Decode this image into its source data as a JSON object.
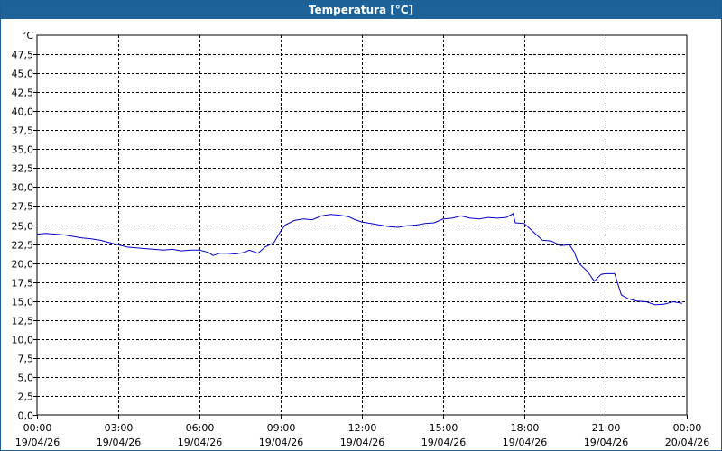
{
  "window": {
    "title": "Temperatura [°C]"
  },
  "chart_data": {
    "type": "line",
    "title": "Temperatura [°C]",
    "ylabel": "°C",
    "ylim": [
      0,
      50
    ],
    "xlim": [
      0,
      24
    ],
    "grid": true,
    "y_ticks": [
      "0,0",
      "2,5",
      "5,0",
      "7,5",
      "10,0",
      "12,5",
      "15,0",
      "17,5",
      "20,0",
      "22,5",
      "25,0",
      "27,5",
      "30,0",
      "32,5",
      "35,0",
      "37,5",
      "40,0",
      "42,5",
      "45,0",
      "47,5"
    ],
    "x_ticks": [
      {
        "time": "00:00",
        "date": "19/04/26"
      },
      {
        "time": "03:00",
        "date": "19/04/26"
      },
      {
        "time": "06:00",
        "date": "19/04/26"
      },
      {
        "time": "09:00",
        "date": "19/04/26"
      },
      {
        "time": "12:00",
        "date": "19/04/26"
      },
      {
        "time": "15:00",
        "date": "19/04/26"
      },
      {
        "time": "18:00",
        "date": "19/04/26"
      },
      {
        "time": "21:00",
        "date": "19/04/26"
      },
      {
        "time": "00:00",
        "date": "20/04/26"
      }
    ],
    "series": [
      {
        "color": "#0000c8",
        "points": [
          [
            "19/04/26 00:00",
            23.8
          ],
          [
            "19/04/26 00:20",
            23.9
          ],
          [
            "19/04/26 00:40",
            23.8
          ],
          [
            "19/04/26 01:00",
            23.7
          ],
          [
            "19/04/26 01:20",
            23.5
          ],
          [
            "19/04/26 01:40",
            23.3
          ],
          [
            "19/04/26 02:00",
            23.2
          ],
          [
            "19/04/26 02:20",
            23.0
          ],
          [
            "19/04/26 02:40",
            22.7
          ],
          [
            "19/04/26 03:00",
            22.4
          ],
          [
            "19/04/26 03:20",
            22.1
          ],
          [
            "19/04/26 03:40",
            22.0
          ],
          [
            "19/04/26 04:00",
            21.9
          ],
          [
            "19/04/26 04:20",
            21.8
          ],
          [
            "19/04/26 04:40",
            21.7
          ],
          [
            "19/04/26 05:00",
            21.8
          ],
          [
            "19/04/26 05:20",
            21.6
          ],
          [
            "19/04/26 05:40",
            21.7
          ],
          [
            "19/04/26 06:00",
            21.7
          ],
          [
            "19/04/26 06:20",
            21.4
          ],
          [
            "19/04/26 06:30",
            21.0
          ],
          [
            "19/04/26 06:45",
            21.3
          ],
          [
            "19/04/26 07:00",
            21.3
          ],
          [
            "19/04/26 07:20",
            21.2
          ],
          [
            "19/04/26 07:40",
            21.4
          ],
          [
            "19/04/26 07:50",
            21.7
          ],
          [
            "19/04/26 08:10",
            21.3
          ],
          [
            "19/04/26 08:25",
            22.1
          ],
          [
            "19/04/26 08:45",
            22.7
          ],
          [
            "19/04/26 09:00",
            24.2
          ],
          [
            "19/04/26 09:10",
            25.0
          ],
          [
            "19/04/26 09:30",
            25.6
          ],
          [
            "19/04/26 09:50",
            25.8
          ],
          [
            "19/04/26 10:10",
            25.7
          ],
          [
            "19/04/26 10:30",
            26.2
          ],
          [
            "19/04/26 10:50",
            26.4
          ],
          [
            "19/04/26 11:10",
            26.3
          ],
          [
            "19/04/26 11:30",
            26.1
          ],
          [
            "19/04/26 11:45",
            25.7
          ],
          [
            "19/04/26 12:00",
            25.4
          ],
          [
            "19/04/26 12:20",
            25.2
          ],
          [
            "19/04/26 12:40",
            25.0
          ],
          [
            "19/04/26 13:00",
            24.8
          ],
          [
            "19/04/26 13:20",
            24.7
          ],
          [
            "19/04/26 13:40",
            24.9
          ],
          [
            "19/04/26 14:00",
            25.0
          ],
          [
            "19/04/26 14:20",
            25.2
          ],
          [
            "19/04/26 14:40",
            25.3
          ],
          [
            "19/04/26 15:00",
            25.8
          ],
          [
            "19/04/26 15:20",
            25.9
          ],
          [
            "19/04/26 15:40",
            26.2
          ],
          [
            "19/04/26 16:00",
            25.9
          ],
          [
            "19/04/26 16:20",
            25.8
          ],
          [
            "19/04/26 16:40",
            26.0
          ],
          [
            "19/04/26 17:00",
            25.9
          ],
          [
            "19/04/26 17:20",
            26.0
          ],
          [
            "19/04/26 17:35",
            26.5
          ],
          [
            "19/04/26 17:40",
            25.3
          ],
          [
            "19/04/26 18:00",
            25.2
          ],
          [
            "19/04/26 18:20",
            24.1
          ],
          [
            "19/04/26 18:40",
            23.0
          ],
          [
            "19/04/26 19:00",
            22.9
          ],
          [
            "19/04/26 19:20",
            22.3
          ],
          [
            "19/04/26 19:40",
            22.4
          ],
          [
            "19/04/26 19:50",
            21.5
          ],
          [
            "19/04/26 20:00",
            20.0
          ],
          [
            "19/04/26 20:20",
            18.9
          ],
          [
            "19/04/26 20:35",
            17.6
          ],
          [
            "19/04/26 20:50",
            18.5
          ],
          [
            "19/04/26 21:00",
            18.6
          ],
          [
            "19/04/26 21:20",
            18.6
          ],
          [
            "19/04/26 21:35",
            15.8
          ],
          [
            "19/04/26 21:50",
            15.3
          ],
          [
            "19/04/26 22:10",
            15.0
          ],
          [
            "19/04/26 22:30",
            14.9
          ],
          [
            "19/04/26 22:50",
            14.5
          ],
          [
            "19/04/26 23:10",
            14.6
          ],
          [
            "19/04/26 23:30",
            14.9
          ],
          [
            "19/04/26 23:50",
            14.7
          ]
        ]
      }
    ]
  }
}
